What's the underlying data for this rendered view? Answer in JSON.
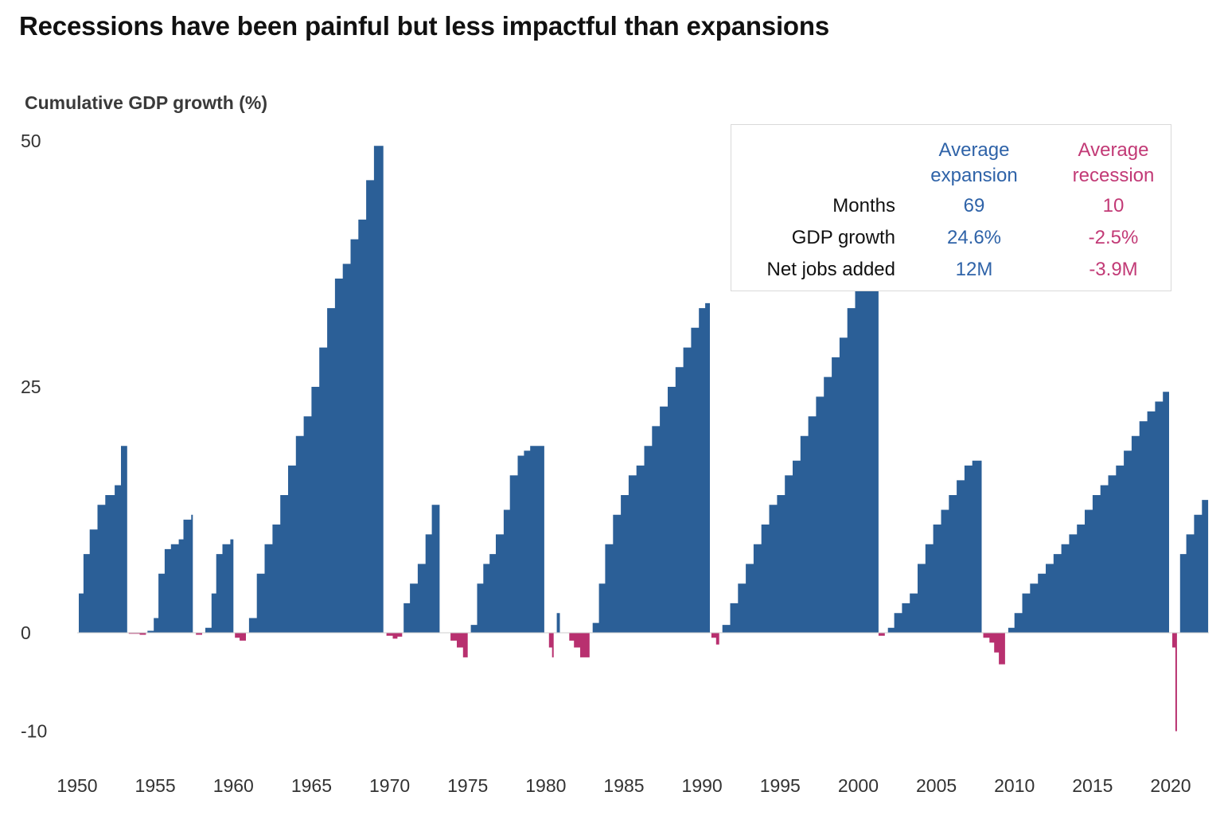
{
  "header": {
    "title": "Recessions have been painful but less impactful than expansions"
  },
  "colors": {
    "expansion": "#2b5f97",
    "recession": "#b8306f",
    "expansion_text": "#2f63a8",
    "recession_text": "#c23a76"
  },
  "stats_table": {
    "col_expansion": "Average expansion",
    "col_recession": "Average recession",
    "rows": [
      {
        "label": "Months",
        "expansion": "69",
        "recession": "10"
      },
      {
        "label": "GDP growth",
        "expansion": "24.6%",
        "recession": "-2.5%"
      },
      {
        "label": "Net jobs added",
        "expansion": "12M",
        "recession": "-3.9M"
      }
    ]
  },
  "chart_data": {
    "type": "area",
    "title": "Recessions have been painful but less impactful than expansions",
    "ylabel": "Cumulative GDP growth (%)",
    "xlabel": "",
    "ylim": [
      -10,
      52
    ],
    "xlim": [
      1950,
      2022.5
    ],
    "yticks": [
      50,
      25,
      0,
      -10
    ],
    "xticks": [
      1950,
      1955,
      1960,
      1965,
      1970,
      1975,
      1980,
      1985,
      1990,
      1995,
      2000,
      2005,
      2010,
      2015,
      2020
    ],
    "grid": false,
    "series": [
      {
        "name": "Average expansion",
        "kind": "expansion",
        "segments": [
          [
            [
              1950.1,
              4
            ],
            [
              1950.4,
              8
            ],
            [
              1950.8,
              10.5
            ],
            [
              1951.3,
              13
            ],
            [
              1951.8,
              14
            ],
            [
              1952.4,
              15
            ],
            [
              1952.8,
              19
            ],
            [
              1953.2,
              19.6
            ]
          ],
          [
            [
              1954.5,
              0.2
            ],
            [
              1954.9,
              1.5
            ],
            [
              1955.2,
              6
            ],
            [
              1955.6,
              8.5
            ],
            [
              1956.0,
              9
            ],
            [
              1956.5,
              9.5
            ],
            [
              1956.8,
              11.5
            ],
            [
              1957.3,
              12
            ],
            [
              1957.4,
              12.3
            ]
          ],
          [
            [
              1958.2,
              0.5
            ],
            [
              1958.6,
              4
            ],
            [
              1958.9,
              8
            ],
            [
              1959.3,
              9
            ],
            [
              1959.8,
              9.5
            ],
            [
              1960.0,
              11.5
            ]
          ],
          [
            [
              1961.0,
              1.5
            ],
            [
              1961.5,
              6
            ],
            [
              1962.0,
              9
            ],
            [
              1962.5,
              11
            ],
            [
              1963.0,
              14
            ],
            [
              1963.5,
              17
            ],
            [
              1964.0,
              20
            ],
            [
              1964.5,
              22
            ],
            [
              1965.0,
              25
            ],
            [
              1965.5,
              29
            ],
            [
              1966.0,
              33
            ],
            [
              1966.5,
              36
            ],
            [
              1967.0,
              37.5
            ],
            [
              1967.5,
              40
            ],
            [
              1968.0,
              42
            ],
            [
              1968.5,
              46
            ],
            [
              1969.0,
              49.5
            ],
            [
              1969.6,
              51.5
            ]
          ],
          [
            [
              1970.9,
              3
            ],
            [
              1971.3,
              5
            ],
            [
              1971.8,
              7
            ],
            [
              1972.3,
              10
            ],
            [
              1972.7,
              13
            ],
            [
              1973.2,
              14
            ]
          ],
          [
            [
              1975.2,
              0.8
            ],
            [
              1975.6,
              5
            ],
            [
              1976.0,
              7
            ],
            [
              1976.4,
              8
            ],
            [
              1976.8,
              10
            ],
            [
              1977.3,
              12.5
            ],
            [
              1977.7,
              16
            ],
            [
              1978.2,
              18
            ],
            [
              1978.6,
              18.5
            ],
            [
              1979.0,
              19
            ],
            [
              1979.9,
              19.5
            ]
          ],
          [
            [
              1980.7,
              2
            ],
            [
              1980.9,
              5
            ]
          ],
          [
            [
              1983.0,
              1
            ],
            [
              1983.4,
              5
            ],
            [
              1983.8,
              9
            ],
            [
              1984.3,
              12
            ],
            [
              1984.8,
              14
            ],
            [
              1985.3,
              16
            ],
            [
              1985.8,
              17
            ],
            [
              1986.3,
              19
            ],
            [
              1986.8,
              21
            ],
            [
              1987.3,
              23
            ],
            [
              1987.8,
              25
            ],
            [
              1988.3,
              27
            ],
            [
              1988.8,
              29
            ],
            [
              1989.3,
              31
            ],
            [
              1989.8,
              33
            ],
            [
              1990.2,
              33.5
            ],
            [
              1990.5,
              34
            ]
          ],
          [
            [
              1991.3,
              0.8
            ],
            [
              1991.8,
              3
            ],
            [
              1992.3,
              5
            ],
            [
              1992.8,
              7
            ],
            [
              1993.3,
              9
            ],
            [
              1993.8,
              11
            ],
            [
              1994.3,
              13
            ],
            [
              1994.8,
              14
            ],
            [
              1995.3,
              16
            ],
            [
              1995.8,
              17.5
            ],
            [
              1996.3,
              20
            ],
            [
              1996.8,
              22
            ],
            [
              1997.3,
              24
            ],
            [
              1997.8,
              26
            ],
            [
              1998.3,
              28
            ],
            [
              1998.8,
              30
            ],
            [
              1999.3,
              33
            ],
            [
              1999.8,
              35.5
            ],
            [
              2000.3,
              38
            ],
            [
              2000.8,
              40
            ],
            [
              2001.3,
              40
            ]
          ],
          [
            [
              2001.9,
              0.5
            ],
            [
              2002.3,
              2
            ],
            [
              2002.8,
              3
            ],
            [
              2003.3,
              4
            ],
            [
              2003.8,
              7
            ],
            [
              2004.3,
              9
            ],
            [
              2004.8,
              11
            ],
            [
              2005.3,
              12.5
            ],
            [
              2005.8,
              14
            ],
            [
              2006.3,
              15.5
            ],
            [
              2006.8,
              17
            ],
            [
              2007.3,
              17.5
            ],
            [
              2007.9,
              18.5
            ]
          ],
          [
            [
              2009.6,
              0.5
            ],
            [
              2010.0,
              2
            ],
            [
              2010.5,
              4
            ],
            [
              2011.0,
              5
            ],
            [
              2011.5,
              6
            ],
            [
              2012.0,
              7
            ],
            [
              2012.5,
              8
            ],
            [
              2013.0,
              9
            ],
            [
              2013.5,
              10
            ],
            [
              2014.0,
              11
            ],
            [
              2014.5,
              12.5
            ],
            [
              2015.0,
              14
            ],
            [
              2015.5,
              15
            ],
            [
              2016.0,
              16
            ],
            [
              2016.5,
              17
            ],
            [
              2017.0,
              18.5
            ],
            [
              2017.5,
              20
            ],
            [
              2018.0,
              21.5
            ],
            [
              2018.5,
              22.5
            ],
            [
              2019.0,
              23.5
            ],
            [
              2019.5,
              24.5
            ],
            [
              2019.9,
              25.2
            ]
          ],
          [
            [
              2020.6,
              8
            ],
            [
              2021.0,
              10
            ],
            [
              2021.5,
              12
            ],
            [
              2022.0,
              13.5
            ],
            [
              2022.4,
              13.3
            ]
          ]
        ]
      },
      {
        "name": "Average recession",
        "kind": "recession",
        "segments": [
          [
            [
              1953.3,
              -0.1
            ],
            [
              1954.0,
              -0.2
            ],
            [
              1954.4,
              -0.1
            ]
          ],
          [
            [
              1957.6,
              -0.2
            ],
            [
              1958.0,
              -0.3
            ]
          ],
          [
            [
              1960.1,
              -0.5
            ],
            [
              1960.4,
              -0.8
            ],
            [
              1960.8,
              -1.5
            ]
          ],
          [
            [
              1969.8,
              -0.3
            ],
            [
              1970.2,
              -0.6
            ],
            [
              1970.5,
              -0.4
            ],
            [
              1970.8,
              -0.6
            ]
          ],
          [
            [
              1973.9,
              -0.8
            ],
            [
              1974.3,
              -1.5
            ],
            [
              1974.7,
              -2.5
            ],
            [
              1975.0,
              -3.5
            ]
          ],
          [
            [
              1980.2,
              -1.5
            ],
            [
              1980.4,
              -2.5
            ],
            [
              1980.5,
              -2.6
            ]
          ],
          [
            [
              1981.5,
              -0.8
            ],
            [
              1981.8,
              -1.5
            ],
            [
              1982.2,
              -2.5
            ],
            [
              1982.6,
              -2.5
            ],
            [
              1982.8,
              -2.6
            ]
          ],
          [
            [
              1990.6,
              -0.5
            ],
            [
              1990.9,
              -1.2
            ],
            [
              1991.1,
              -1.3
            ]
          ],
          [
            [
              2001.3,
              -0.3
            ],
            [
              2001.7,
              -0.5
            ]
          ],
          [
            [
              2008.0,
              -0.5
            ],
            [
              2008.4,
              -1
            ],
            [
              2008.7,
              -2
            ],
            [
              2009.0,
              -3.2
            ],
            [
              2009.4,
              -3.8
            ]
          ],
          [
            [
              2020.1,
              -1.5
            ],
            [
              2020.3,
              -10
            ],
            [
              2020.4,
              -10
            ]
          ]
        ]
      }
    ]
  }
}
